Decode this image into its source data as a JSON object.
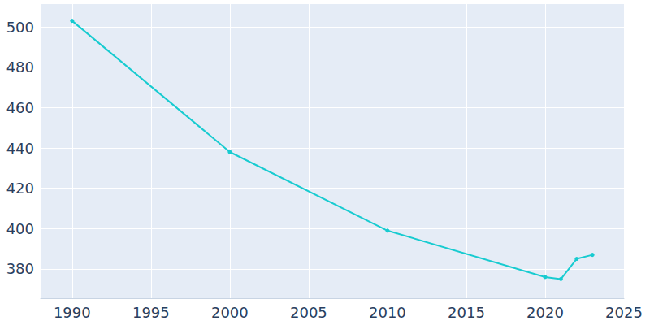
{
  "chart_data": {
    "type": "line",
    "x": [
      1990,
      2000,
      2010,
      2020,
      2021,
      2022,
      2023
    ],
    "values": [
      503,
      438,
      399,
      376,
      375,
      385,
      387
    ],
    "color": "#17cbd0",
    "marker": "circle",
    "xlim": [
      1988,
      2025
    ],
    "xticks": [
      1990,
      1995,
      2000,
      2005,
      2010,
      2015,
      2020,
      2025
    ],
    "ylim": [
      365.5,
      511.3
    ],
    "yticks": [
      380,
      400,
      420,
      440,
      460,
      480,
      500
    ],
    "grid": true
  }
}
